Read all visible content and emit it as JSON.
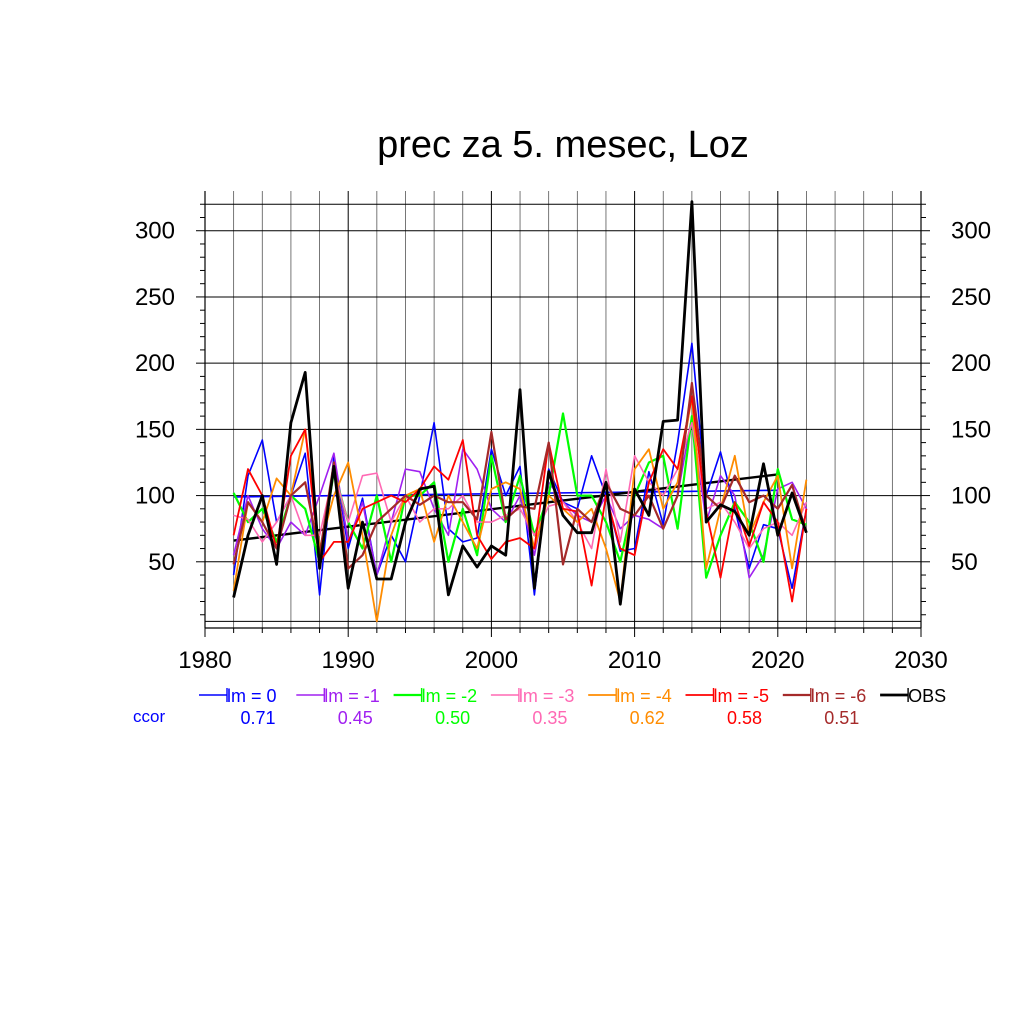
{
  "chart_data": {
    "type": "line",
    "title": "prec za 5. mesec, Loz",
    "xlabel": "",
    "ylabel": "",
    "xlim": [
      1980,
      2030
    ],
    "ylim": [
      0,
      330
    ],
    "x_ticks": [
      1980,
      1990,
      2000,
      2010,
      2020,
      2030
    ],
    "y_ticks": [
      50,
      100,
      150,
      200,
      250,
      300
    ],
    "grid": true,
    "legend_position": "bottom",
    "ccor_label": "ccor",
    "years": [
      1982,
      1983,
      1984,
      1985,
      1986,
      1987,
      1988,
      1989,
      1990,
      1991,
      1992,
      1993,
      1994,
      1995,
      1996,
      1997,
      1998,
      1999,
      2000,
      2001,
      2002,
      2003,
      2004,
      2005,
      2006,
      2007,
      2008,
      2009,
      2010,
      2011,
      2012,
      2013,
      2014,
      2015,
      2016,
      2017,
      2018,
      2019,
      2020,
      2021,
      2022
    ],
    "series": [
      {
        "name": "lm = 0",
        "ccor": "0.71",
        "color": "#0000ff",
        "width": 1.6,
        "values": [
          40,
          115,
          142,
          80,
          100,
          132,
          25,
          130,
          60,
          98,
          40,
          70,
          50,
          100,
          155,
          75,
          65,
          68,
          135,
          100,
          122,
          25,
          120,
          95,
          90,
          130,
          100,
          58,
          60,
          118,
          78,
          140,
          215,
          100,
          133,
          90,
          45,
          78,
          75,
          30,
          90
        ],
        "trend": [
          99,
          104
        ]
      },
      {
        "name": "lm = -1",
        "ccor": "0.45",
        "color": "#a020f0",
        "width": 1.6,
        "values": [
          55,
          100,
          75,
          60,
          80,
          70,
          100,
          132,
          65,
          95,
          40,
          80,
          120,
          118,
          90,
          70,
          135,
          120,
          90,
          80,
          100,
          55,
          110,
          95,
          85,
          80,
          100,
          75,
          85,
          82,
          75,
          100,
          160,
          80,
          115,
          100,
          38,
          55,
          105,
          110,
          90
        ]
      },
      {
        "name": "lm = -2",
        "ccor": "0.50",
        "color": "#00ff00",
        "width": 2.2,
        "values": [
          102,
          80,
          90,
          65,
          100,
          90,
          50,
          118,
          80,
          60,
          100,
          50,
          100,
          100,
          110,
          50,
          90,
          55,
          130,
          80,
          115,
          70,
          100,
          162,
          100,
          100,
          80,
          50,
          100,
          125,
          130,
          75,
          160,
          38,
          70,
          95,
          80,
          50,
          120,
          82,
          78
        ]
      },
      {
        "name": "lm = -3",
        "ccor": "0.35",
        "color": "#ff69b4",
        "width": 1.6,
        "values": [
          85,
          82,
          65,
          80,
          100,
          70,
          70,
          118,
          80,
          115,
          117,
          80,
          100,
          80,
          90,
          90,
          100,
          80,
          80,
          85,
          90,
          70,
          92,
          95,
          80,
          60,
          120,
          65,
          130,
          110,
          100,
          120,
          155,
          90,
          95,
          80,
          60,
          75,
          80,
          70,
          95
        ]
      },
      {
        "name": "lm = -4",
        "ccor": "0.62",
        "color": "#ff8c00",
        "width": 1.8,
        "values": [
          28,
          95,
          80,
          113,
          100,
          150,
          60,
          100,
          125,
          70,
          5,
          70,
          100,
          105,
          65,
          100,
          80,
          60,
          105,
          110,
          105,
          60,
          100,
          90,
          80,
          90,
          60,
          20,
          120,
          135,
          90,
          110,
          175,
          45,
          90,
          130,
          70,
          95,
          115,
          45,
          112
        ]
      },
      {
        "name": "lm = -5",
        "ccor": "0.58",
        "color": "#ff0000",
        "width": 1.8,
        "values": [
          70,
          120,
          100,
          60,
          130,
          150,
          50,
          65,
          65,
          90,
          95,
          100,
          95,
          105,
          122,
          112,
          142,
          70,
          52,
          65,
          68,
          60,
          140,
          90,
          88,
          32,
          100,
          60,
          55,
          110,
          135,
          120,
          175,
          88,
          38,
          95,
          62,
          95,
          80,
          20,
          90
        ]
      },
      {
        "name": "lm = -6",
        "ccor": "0.51",
        "color": "#a52a2a",
        "width": 2.2,
        "values": [
          48,
          95,
          80,
          60,
          100,
          110,
          55,
          125,
          45,
          55,
          80,
          90,
          100,
          93,
          100,
          95,
          95,
          82,
          148,
          82,
          92,
          90,
          140,
          48,
          90,
          80,
          110,
          90,
          85,
          100,
          75,
          100,
          185,
          100,
          90,
          115,
          95,
          100,
          90,
          108,
          72
        ]
      },
      {
        "name": "OBS",
        "ccor": "",
        "color": "#000000",
        "width": 2.8,
        "values": [
          23,
          70,
          100,
          48,
          155,
          193,
          45,
          122,
          30,
          80,
          37,
          37,
          80,
          105,
          107,
          25,
          62,
          46,
          62,
          55,
          180,
          30,
          118,
          85,
          72,
          72,
          110,
          18,
          105,
          85,
          156,
          157,
          322,
          80,
          93,
          88,
          70,
          124,
          70,
          102,
          72
        ],
        "trend": [
          66,
          116
        ]
      }
    ]
  }
}
